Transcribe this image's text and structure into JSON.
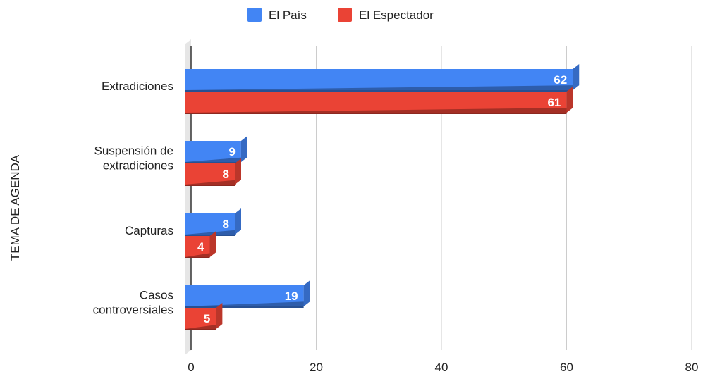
{
  "chart_data": {
    "type": "bar",
    "orientation": "horizontal",
    "style": "3d",
    "title": "",
    "xlabel": "",
    "ylabel": "TEMA DE AGENDA",
    "categories": [
      "Extradiciones",
      "Suspensión de extradiciones",
      "Capturas",
      "Casos controversiales"
    ],
    "category_lines": [
      [
        "Extradiciones"
      ],
      [
        "Suspensión de",
        "extradiciones"
      ],
      [
        "Capturas"
      ],
      [
        "Casos",
        "controversiales"
      ]
    ],
    "series": [
      {
        "name": "El País",
        "color": "#4285f4",
        "values": [
          62,
          9,
          8,
          19
        ]
      },
      {
        "name": "El Espectador",
        "color": "#ea4335",
        "values": [
          61,
          8,
          4,
          5
        ]
      }
    ],
    "xlim": [
      0,
      80
    ],
    "xticks": [
      "0",
      "20",
      "40",
      "60",
      "80"
    ],
    "grid": true,
    "legend": "top"
  }
}
